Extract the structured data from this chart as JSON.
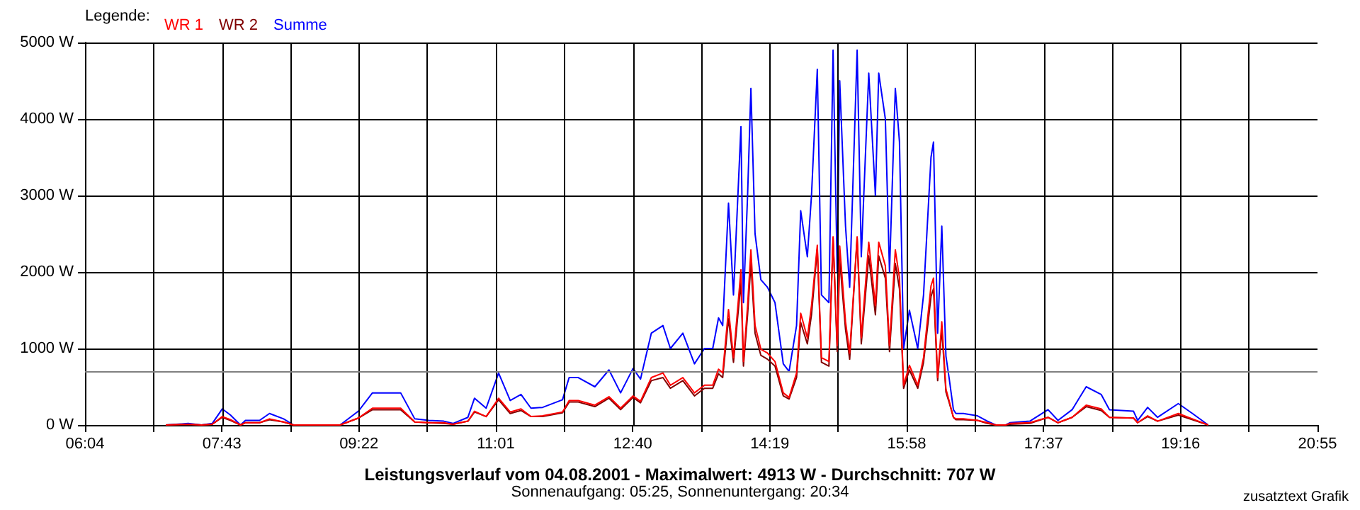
{
  "chart_data": {
    "type": "line",
    "title": "Leistungsverlauf vom 04.08.2001 - Maximalwert: 4913 W - Durchschnitt: 707 W",
    "subtitle": "Sonnenaufgang: 05:25, Sonnenuntergang: 20:34",
    "legend_title": "Legende:",
    "annotations": [
      "zusatztext Grafik"
    ],
    "x": [
      7.04,
      7.31,
      7.47,
      7.6,
      7.72,
      7.82,
      7.94,
      8.0,
      8.17,
      8.29,
      8.46,
      8.58,
      9.14,
      9.36,
      9.53,
      9.87,
      10.04,
      10.21,
      10.39,
      10.5,
      10.68,
      10.76,
      10.9,
      11.05,
      11.19,
      11.32,
      11.44,
      11.58,
      11.82,
      11.9,
      12.01,
      12.21,
      12.38,
      12.52,
      12.67,
      12.76,
      12.89,
      13.03,
      13.12,
      13.27,
      13.41,
      13.53,
      13.63,
      13.7,
      13.75,
      13.82,
      13.88,
      13.97,
      14.0,
      14.05,
      14.09,
      14.14,
      14.21,
      14.29,
      14.38,
      14.48,
      14.55,
      14.64,
      14.69,
      14.77,
      14.82,
      14.89,
      14.94,
      15.03,
      15.08,
      15.13,
      15.16,
      15.23,
      15.28,
      15.37,
      15.42,
      15.51,
      15.59,
      15.63,
      15.71,
      15.76,
      15.83,
      15.88,
      15.93,
      16.0,
      16.1,
      16.17,
      16.26,
      16.29,
      16.34,
      16.39,
      16.44,
      16.48,
      16.53,
      16.56,
      16.65,
      16.82,
      16.94,
      17.04,
      17.16,
      17.21,
      17.45,
      17.67,
      17.79,
      17.96,
      18.13,
      18.31,
      18.41,
      18.7,
      18.75,
      18.87,
      18.99,
      19.24,
      19.41,
      19.6
    ],
    "series": [
      {
        "name": "WR 1",
        "color": "#ff0000",
        "values": [
          0,
          10,
          0,
          10,
          110,
          70,
          0,
          30,
          30,
          80,
          40,
          0,
          0,
          90,
          220,
          220,
          40,
          30,
          30,
          10,
          50,
          180,
          110,
          350,
          170,
          210,
          110,
          120,
          170,
          320,
          320,
          260,
          370,
          220,
          380,
          310,
          620,
          680,
          520,
          620,
          420,
          520,
          520,
          730,
          680,
          1510,
          880,
          2030,
          830,
          1560,
          2290,
          1300,
          990,
          940,
          830,
          420,
          360,
          680,
          1460,
          1140,
          1560,
          2350,
          880,
          830,
          2460,
          1040,
          2340,
          1350,
          940,
          2460,
          1140,
          2390,
          1560,
          2390,
          2080,
          1040,
          2290,
          1920,
          520,
          780,
          520,
          880,
          1820,
          1920,
          620,
          1350,
          470,
          310,
          100,
          80,
          80,
          60,
          30,
          0,
          0,
          20,
          30,
          100,
          30,
          100,
          260,
          210,
          100,
          90,
          30,
          120,
          50,
          150,
          80,
          0
        ]
      },
      {
        "name": "WR 2",
        "color": "#800000",
        "values": [
          0,
          10,
          0,
          10,
          100,
          60,
          0,
          30,
          30,
          70,
          40,
          0,
          0,
          90,
          200,
          200,
          40,
          30,
          20,
          10,
          50,
          170,
          110,
          330,
          150,
          190,
          110,
          110,
          160,
          300,
          300,
          240,
          350,
          200,
          360,
          290,
          580,
          620,
          480,
          580,
          380,
          480,
          480,
          670,
          620,
          1390,
          820,
          1870,
          770,
          1440,
          2110,
          1200,
          910,
          860,
          770,
          380,
          340,
          620,
          1340,
          1060,
          1440,
          2300,
          820,
          770,
          2440,
          960,
          2160,
          1250,
          860,
          2440,
          1060,
          2210,
          1440,
          2210,
          1920,
          960,
          2110,
          1780,
          480,
          720,
          480,
          820,
          1680,
          1780,
          580,
          1250,
          430,
          290,
          100,
          70,
          70,
          60,
          20,
          0,
          0,
          10,
          20,
          100,
          30,
          100,
          240,
          190,
          100,
          90,
          30,
          110,
          50,
          130,
          70,
          0
        ]
      },
      {
        "name": "Summe",
        "color": "#0000ff",
        "values": [
          0,
          20,
          0,
          20,
          210,
          130,
          0,
          60,
          60,
          150,
          80,
          0,
          0,
          180,
          420,
          420,
          80,
          60,
          50,
          20,
          100,
          350,
          220,
          680,
          320,
          400,
          220,
          230,
          330,
          620,
          620,
          500,
          720,
          420,
          740,
          600,
          1200,
          1300,
          1000,
          1200,
          800,
          1000,
          1000,
          1400,
          1300,
          2900,
          1700,
          3900,
          1600,
          3000,
          4400,
          2500,
          1900,
          1800,
          1600,
          800,
          700,
          1300,
          2800,
          2200,
          3000,
          4650,
          1700,
          1600,
          4900,
          2000,
          4500,
          2600,
          1800,
          4900,
          2200,
          4600,
          3000,
          4600,
          4000,
          2000,
          4400,
          3700,
          1000,
          1500,
          1000,
          1700,
          3500,
          3700,
          1200,
          2600,
          900,
          600,
          200,
          150,
          150,
          120,
          50,
          0,
          0,
          30,
          50,
          200,
          60,
          200,
          500,
          400,
          200,
          180,
          60,
          230,
          100,
          280,
          150,
          0
        ]
      }
    ],
    "xlim": [
      6.0667,
      20.9167
    ],
    "xticks": [
      {
        "value": 6.0667,
        "label": "06:04"
      },
      {
        "value": 6.8917,
        "label": null
      },
      {
        "value": 7.7167,
        "label": "07:43"
      },
      {
        "value": 8.5417,
        "label": null
      },
      {
        "value": 9.3667,
        "label": "09:22"
      },
      {
        "value": 10.1917,
        "label": null
      },
      {
        "value": 11.0167,
        "label": "11:01"
      },
      {
        "value": 11.8417,
        "label": null
      },
      {
        "value": 12.6667,
        "label": "12:40"
      },
      {
        "value": 13.4917,
        "label": null
      },
      {
        "value": 14.3167,
        "label": "14:19"
      },
      {
        "value": 15.1417,
        "label": null
      },
      {
        "value": 15.9667,
        "label": "15:58"
      },
      {
        "value": 16.7917,
        "label": null
      },
      {
        "value": 17.6167,
        "label": "17:37"
      },
      {
        "value": 18.4417,
        "label": null
      },
      {
        "value": 19.2667,
        "label": "19:16"
      },
      {
        "value": 20.0917,
        "label": null
      },
      {
        "value": 20.9167,
        "label": "20:55"
      }
    ],
    "ylim": [
      0,
      5000
    ],
    "yticks": [
      {
        "value": 0,
        "label": "0 W"
      },
      {
        "value": 1000,
        "label": "1000 W"
      },
      {
        "value": 2000,
        "label": "2000 W"
      },
      {
        "value": 3000,
        "label": "3000 W"
      },
      {
        "value": 4000,
        "label": "4000 W"
      },
      {
        "value": 5000,
        "label": "5000 W"
      }
    ],
    "ref_lines": [
      {
        "axis": "y",
        "value": 707,
        "color": "#808080"
      }
    ],
    "grid": true,
    "legend": "top left",
    "marker": "none",
    "line_style": "solid"
  }
}
